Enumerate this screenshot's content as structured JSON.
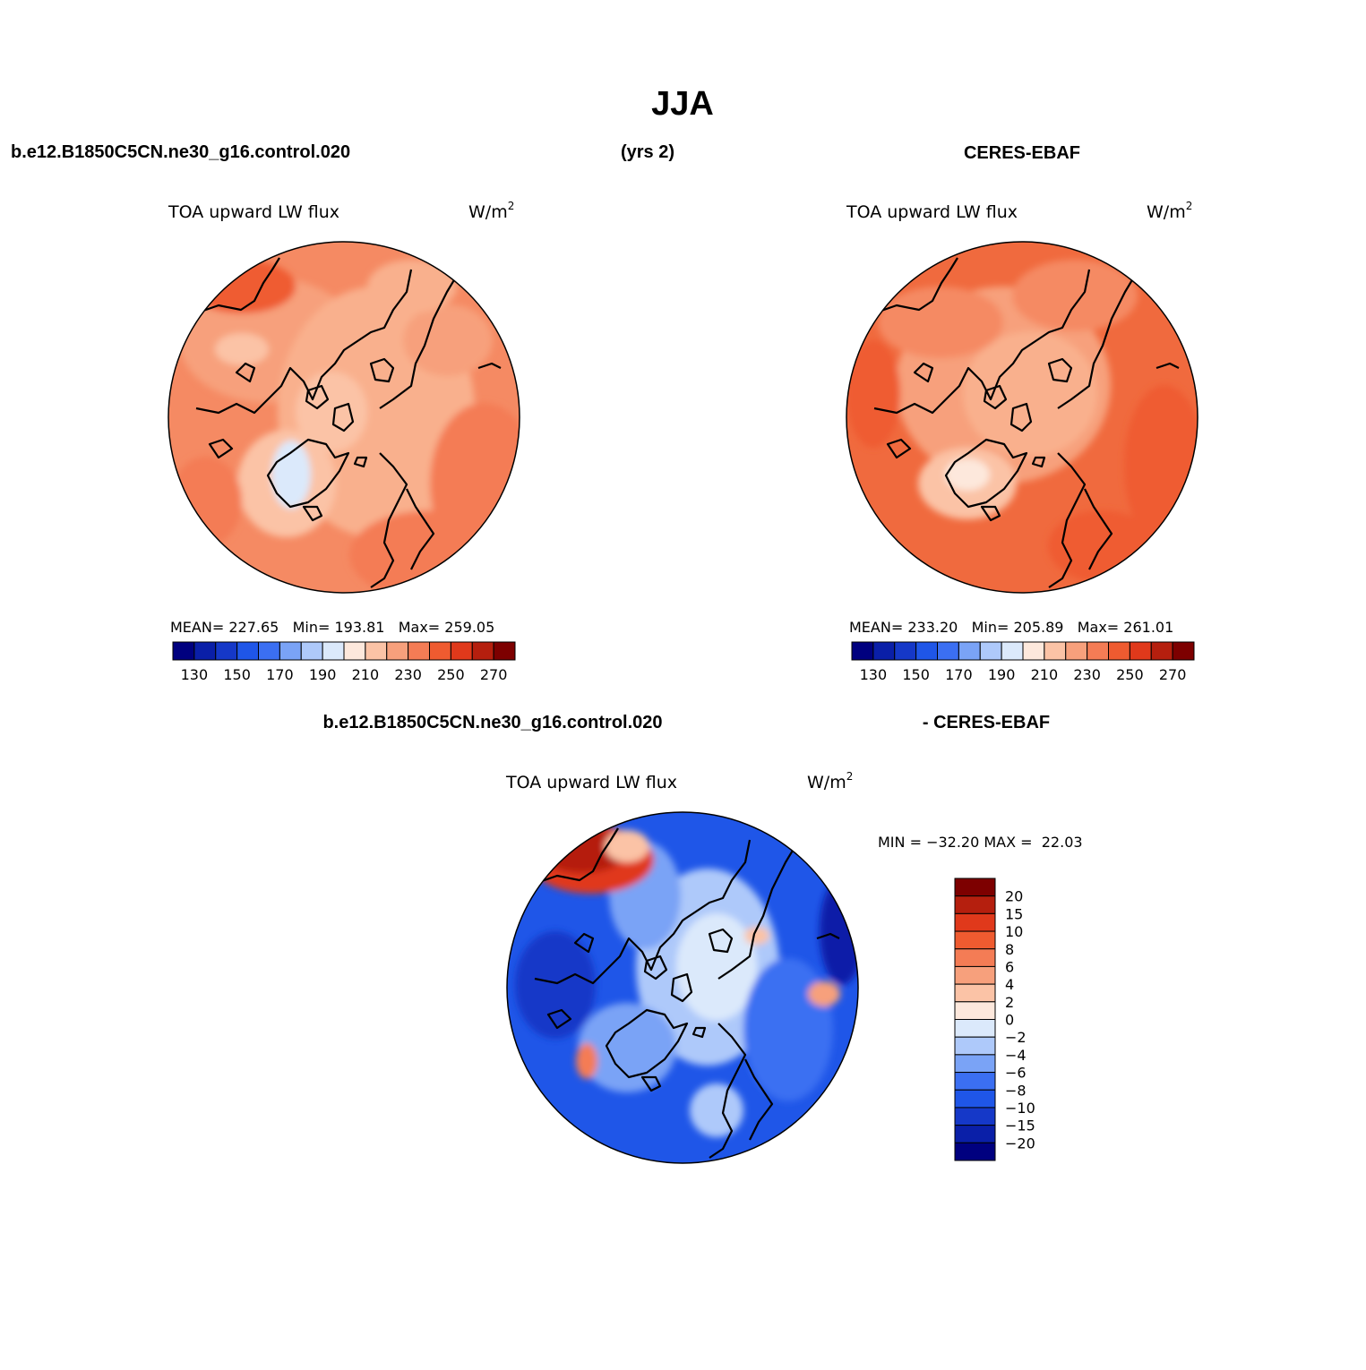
{
  "chart_data": {
    "type": "heatmap",
    "title": "JJA",
    "palettes": {
      "absolute": [
        "#00007f",
        "#0a1fa8",
        "#1538c8",
        "#1f56e8",
        "#3b6ff2",
        "#7aa3f6",
        "#aec9fa",
        "#dbe9fb",
        "#fde8dc",
        "#fbc3a6",
        "#f7a07c",
        "#f47c55",
        "#ef5b30",
        "#e0391b",
        "#b51f0e",
        "#7d0000"
      ],
      "difference": [
        "#00007f",
        "#0a1fa8",
        "#1538c8",
        "#1f56e8",
        "#3b6ff2",
        "#7aa3f6",
        "#aec9fa",
        "#dbe9fb",
        "#fde8dc",
        "#fbc3a6",
        "#f7a07c",
        "#f47c55",
        "#ef5b30",
        "#e0391b",
        "#b51f0e",
        "#7d0000"
      ]
    },
    "panels": [
      {
        "id": "model",
        "header_left": "b.e12.B1850C5CN.ne30_g16.control.020",
        "header_center": "(yrs 2)",
        "variable": "TOA upward LW flux",
        "units": "W/m",
        "units_sup": "2",
        "mean": "227.65",
        "min": "193.81",
        "max": "259.05",
        "mean_label": "MEAN=",
        "min_label": "Min=",
        "max_label": "Max=",
        "colorbar_ticks": [
          "130",
          "150",
          "170",
          "190",
          "210",
          "230",
          "250",
          "270"
        ],
        "colorbar_range": [
          120,
          280
        ]
      },
      {
        "id": "obs",
        "header_right": "CERES-EBAF",
        "variable": "TOA upward LW flux",
        "units": "W/m",
        "units_sup": "2",
        "mean": "233.20",
        "min": "205.89",
        "max": "261.01",
        "mean_label": "MEAN=",
        "min_label": "Min=",
        "max_label": "Max=",
        "colorbar_ticks": [
          "130",
          "150",
          "170",
          "190",
          "210",
          "230",
          "250",
          "270"
        ],
        "colorbar_range": [
          120,
          280
        ]
      },
      {
        "id": "diff",
        "header_left": "b.e12.B1850C5CN.ne30_g16.control.020",
        "header_right": "- CERES-EBAF",
        "variable": "TOA upward LW flux",
        "units": "W/m",
        "units_sup": "2",
        "min_max_text": "MIN = −32.20 MAX =  22.03",
        "colorbar_levels": [
          "20",
          "15",
          "10",
          "8",
          "6",
          "4",
          "2",
          "0",
          "−2",
          "−4",
          "−6",
          "−8",
          "−10",
          "−15",
          "−20"
        ]
      }
    ]
  }
}
